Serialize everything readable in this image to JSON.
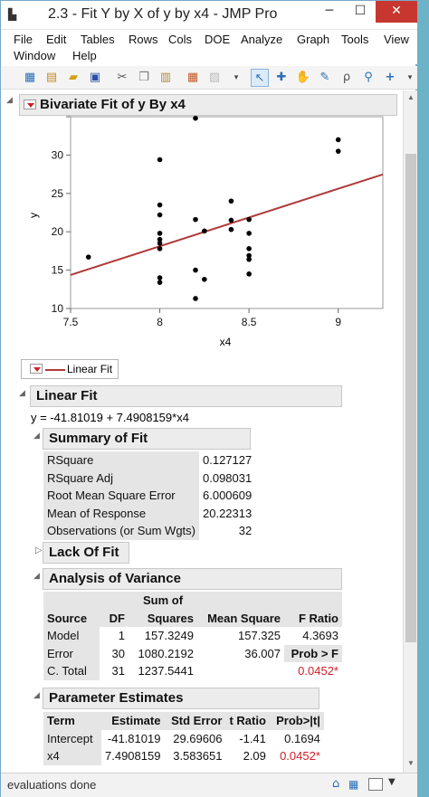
{
  "window": {
    "title": "2.3 - Fit Y by X of y by x4 - JMP Pro",
    "minimize": "─",
    "maximize": "☐",
    "close": "✕"
  },
  "menu": [
    "File",
    "Edit",
    "Tables",
    "Rows",
    "Cols",
    "DOE",
    "Analyze",
    "Graph",
    "Tools",
    "View",
    "Window",
    "Help"
  ],
  "report": {
    "bivariate_title": "Bivariate Fit of y By x4",
    "legend_label": "Linear Fit",
    "linear_fit_title": "Linear Fit",
    "equation": "y = -41.81019 + 7.4908159*x4",
    "summary_title": "Summary of Fit",
    "summary_rows": [
      [
        "RSquare",
        "0.127127"
      ],
      [
        "RSquare Adj",
        "0.098031"
      ],
      [
        "Root Mean Square Error",
        "6.000609"
      ],
      [
        "Mean of Response",
        "20.22313"
      ],
      [
        "Observations (or Sum Wgts)",
        "32"
      ]
    ],
    "lack_of_fit_title": "Lack Of Fit",
    "anova_title": "Analysis of Variance",
    "anova_header1": "Sum of",
    "anova_header2": [
      "Source",
      "DF",
      "Squares",
      "Mean Square",
      "F Ratio"
    ],
    "anova_rows": [
      [
        "Model",
        "1",
        "157.3249",
        "157.325",
        "4.3693"
      ],
      [
        "Error",
        "30",
        "1080.2192",
        "36.007",
        "Prob > F"
      ],
      [
        "C. Total",
        "31",
        "1237.5441",
        "",
        "0.0452*"
      ]
    ],
    "param_title": "Parameter Estimates",
    "param_header": [
      "Term",
      "Estimate",
      "Std Error",
      "t Ratio",
      "Prob>|t|"
    ],
    "param_rows": [
      [
        "Intercept",
        "-41.81019",
        "29.69606",
        "-1.41",
        "0.1694"
      ],
      [
        "x4",
        "7.4908159",
        "3.583651",
        "2.09",
        "0.0452*"
      ]
    ]
  },
  "chart_data": {
    "type": "scatter",
    "xlabel": "x4",
    "ylabel": "y",
    "xlim": [
      7.5,
      9.25
    ],
    "ylim": [
      10,
      35
    ],
    "xticks": [
      "7.5",
      "8",
      "8.5",
      "9"
    ],
    "yticks": [
      "10",
      "15",
      "20",
      "25",
      "30"
    ],
    "points": [
      [
        7.6,
        16.7
      ],
      [
        8.0,
        29.4
      ],
      [
        8.0,
        23.5
      ],
      [
        8.0,
        22.2
      ],
      [
        8.0,
        19.8
      ],
      [
        8.0,
        19.0
      ],
      [
        8.0,
        18.5
      ],
      [
        8.0,
        17.8
      ],
      [
        8.0,
        14.0
      ],
      [
        8.0,
        13.4
      ],
      [
        8.2,
        34.8
      ],
      [
        8.2,
        21.6
      ],
      [
        8.2,
        15.0
      ],
      [
        8.2,
        11.3
      ],
      [
        8.25,
        20.1
      ],
      [
        8.25,
        13.8
      ],
      [
        8.4,
        24.0
      ],
      [
        8.4,
        21.5
      ],
      [
        8.4,
        20.3
      ],
      [
        8.5,
        21.6
      ],
      [
        8.5,
        19.8
      ],
      [
        8.5,
        17.8
      ],
      [
        8.5,
        16.9
      ],
      [
        8.5,
        16.4
      ],
      [
        8.5,
        14.5
      ],
      [
        9.0,
        32.0
      ],
      [
        9.0,
        30.5
      ]
    ],
    "fit": {
      "intercept": -41.81019,
      "slope": 7.4908159,
      "color": "#b03a3a"
    },
    "point_color": "#000000"
  },
  "status": "evaluations done"
}
